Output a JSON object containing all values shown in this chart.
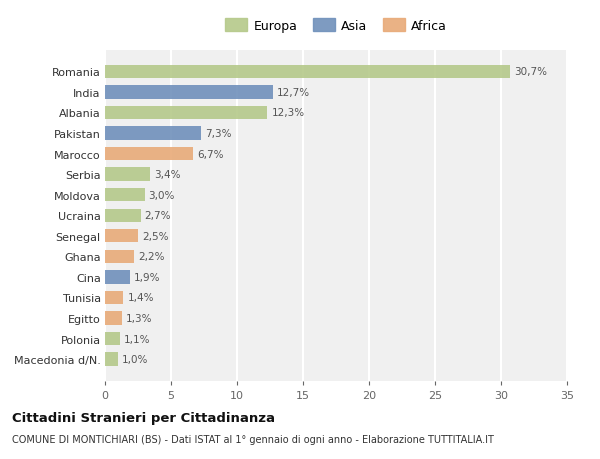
{
  "categories": [
    "Macedonia d/N.",
    "Polonia",
    "Egitto",
    "Tunisia",
    "Cina",
    "Ghana",
    "Senegal",
    "Ucraina",
    "Moldova",
    "Serbia",
    "Marocco",
    "Pakistan",
    "Albania",
    "India",
    "Romania"
  ],
  "values": [
    1.0,
    1.1,
    1.3,
    1.4,
    1.9,
    2.2,
    2.5,
    2.7,
    3.0,
    3.4,
    6.7,
    7.3,
    12.3,
    12.7,
    30.7
  ],
  "labels": [
    "1,0%",
    "1,1%",
    "1,3%",
    "1,4%",
    "1,9%",
    "2,2%",
    "2,5%",
    "2,7%",
    "3,0%",
    "3,4%",
    "6,7%",
    "7,3%",
    "12,3%",
    "12,7%",
    "30,7%"
  ],
  "continents": [
    "Europa",
    "Europa",
    "Africa",
    "Africa",
    "Asia",
    "Africa",
    "Africa",
    "Europa",
    "Europa",
    "Europa",
    "Africa",
    "Asia",
    "Europa",
    "Asia",
    "Europa"
  ],
  "colors": {
    "Europa": "#b5c98a",
    "Asia": "#7090bb",
    "Africa": "#e8aa78"
  },
  "bar_alpha": 0.9,
  "background_color": "#ffffff",
  "plot_bg_color": "#f0f0f0",
  "grid_color": "#ffffff",
  "title": "Cittadini Stranieri per Cittadinanza",
  "subtitle": "COMUNE DI MONTICHIARI (BS) - Dati ISTAT al 1° gennaio di ogni anno - Elaborazione TUTTITALIA.IT",
  "xlim": [
    0,
    35
  ],
  "xticks": [
    0,
    5,
    10,
    15,
    20,
    25,
    30,
    35
  ]
}
